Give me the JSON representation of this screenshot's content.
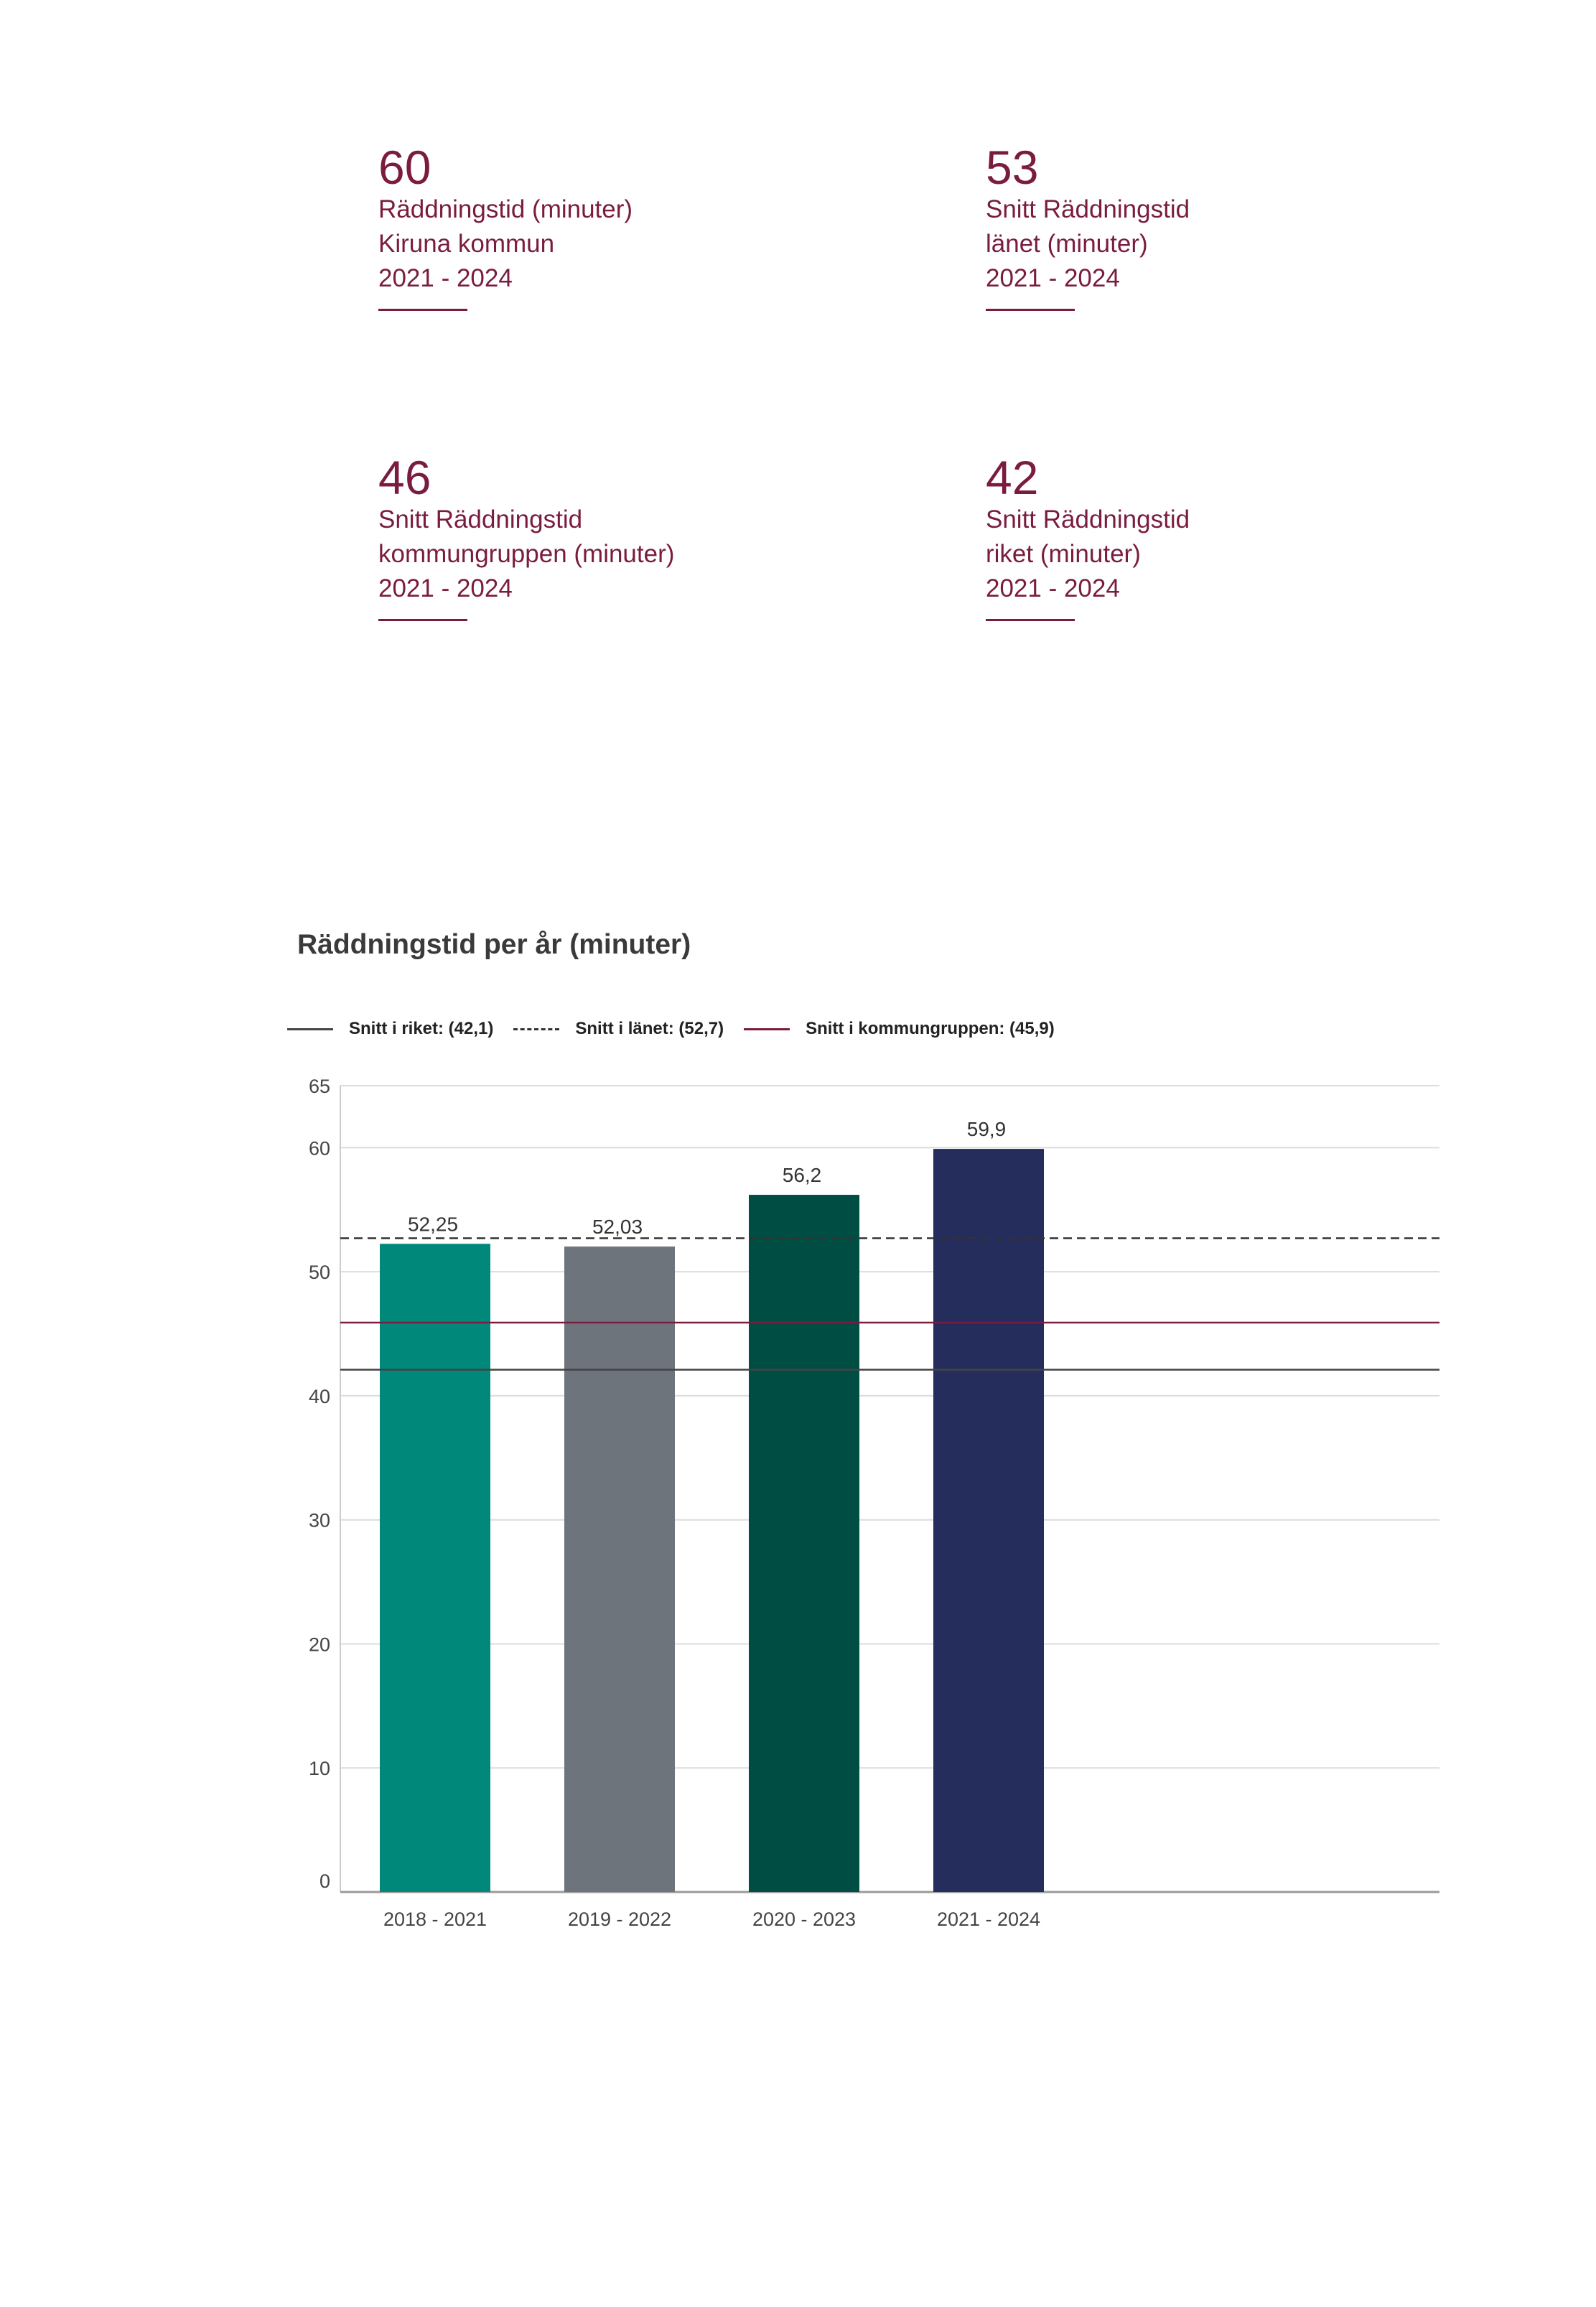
{
  "kpis": [
    {
      "value": "60",
      "lines": [
        "Räddningstid (minuter)",
        "Kiruna kommun",
        "2021 - 2024"
      ]
    },
    {
      "value": "53",
      "lines": [
        "Snitt Räddningstid",
        "länet (minuter)",
        "2021 - 2024"
      ]
    },
    {
      "value": "46",
      "lines": [
        "Snitt Räddningstid",
        "kommungruppen (minuter)",
        "2021 - 2024"
      ]
    },
    {
      "value": "42",
      "lines": [
        "Snitt Räddningstid",
        "riket (minuter)",
        "2021 - 2024"
      ]
    }
  ],
  "legend": [
    {
      "label": "Snitt i riket: (42,1)",
      "style": "solid",
      "color": "#444444"
    },
    {
      "label": "Snitt i länet: (52,7)",
      "style": "dashed",
      "color": "#333333"
    },
    {
      "label": "Snitt i kommungruppen: (45,9)",
      "style": "solid",
      "color": "#7a1c3f"
    }
  ],
  "chart_data": {
    "type": "bar",
    "title": "Räddningstid per år (minuter)",
    "categories": [
      "2018 - 2021",
      "2019 - 2022",
      "2020 - 2023",
      "2021 - 2024"
    ],
    "values": [
      52.25,
      52.03,
      56.2,
      59.9
    ],
    "value_labels": [
      "52,25",
      "52,03",
      "56,2",
      "59,9"
    ],
    "bar_colors": [
      "#00897b",
      "#6e747c",
      "#004d43",
      "#252d5c"
    ],
    "ylim": [
      0,
      65
    ],
    "yticks": [
      0,
      10,
      20,
      30,
      40,
      50,
      60,
      65
    ],
    "reference_lines": [
      {
        "name": "Snitt i riket",
        "value": 42.1,
        "style": "solid",
        "color": "#444444"
      },
      {
        "name": "Snitt i länet",
        "value": 52.7,
        "style": "dashed",
        "color": "#333333"
      },
      {
        "name": "Snitt i kommungruppen",
        "value": 45.9,
        "style": "solid",
        "color": "#7a1c3f"
      }
    ],
    "xlabel": "",
    "ylabel": "",
    "grid": true
  }
}
